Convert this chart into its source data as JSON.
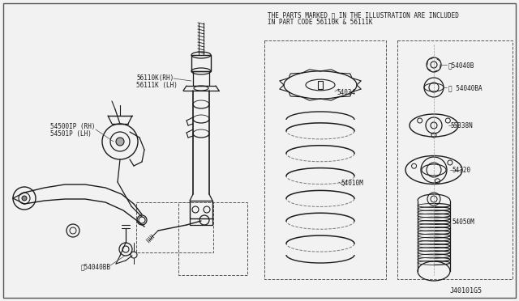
{
  "bg": "#f0f0f0",
  "fg": "#1a1a1a",
  "dash_color": "#555555",
  "header1": "THE PARTS MARKED ※ IN THE ILLUSTRATION ARE INCLUDED",
  "header2": "IN PART CODE 56110K & 56111K",
  "diagram_id": "J40101G5",
  "lw_main": 1.0,
  "lw_thin": 0.7,
  "lw_thick": 1.3
}
